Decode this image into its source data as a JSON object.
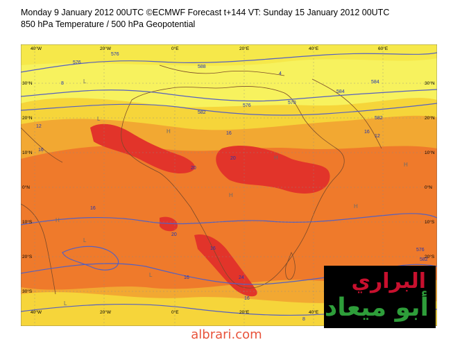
{
  "header": {
    "line1": "Monday 9 January 2012 00UTC ©ECMWF Forecast t+144 VT: Sunday 15 January 2012 00UTC",
    "line2": "850 hPa Temperature / 500 hPa Geopotential"
  },
  "map": {
    "lon_labels": [
      "40°W",
      "20°W",
      "0°E",
      "20°E",
      "40°E",
      "60°E"
    ],
    "lat_labels": [
      "30°N",
      "20°N",
      "10°N",
      "0°N",
      "10°S",
      "20°S",
      "30°S"
    ],
    "contour_values": [
      "576",
      "588",
      "584",
      "576",
      "570",
      "584",
      "582",
      "576",
      "584",
      "582",
      "576",
      "570",
      "582",
      "576"
    ],
    "isotherm_values": [
      "8",
      "12",
      "16",
      "4",
      "16",
      "12",
      "16",
      "20",
      "20",
      "16",
      "20",
      "16",
      "24",
      "16",
      "20",
      "16",
      "8",
      "4"
    ],
    "center_labels": [
      "H",
      "L",
      "H",
      "L",
      "H",
      "L",
      "H",
      "L",
      "H",
      "L",
      "H",
      "L"
    ],
    "colors": {
      "ocean": "#f2c84a",
      "cool": "#f7f25e",
      "mild": "#f6d53a",
      "warm": "#f2a832",
      "hot": "#ef7a2b",
      "very_hot": "#e2342a",
      "contour": "#5560c0",
      "coast": "#7a4a2a"
    }
  },
  "logo": {
    "line1": "البراري",
    "line2": "أبو ميعاد"
  },
  "footer": "albrari.com"
}
